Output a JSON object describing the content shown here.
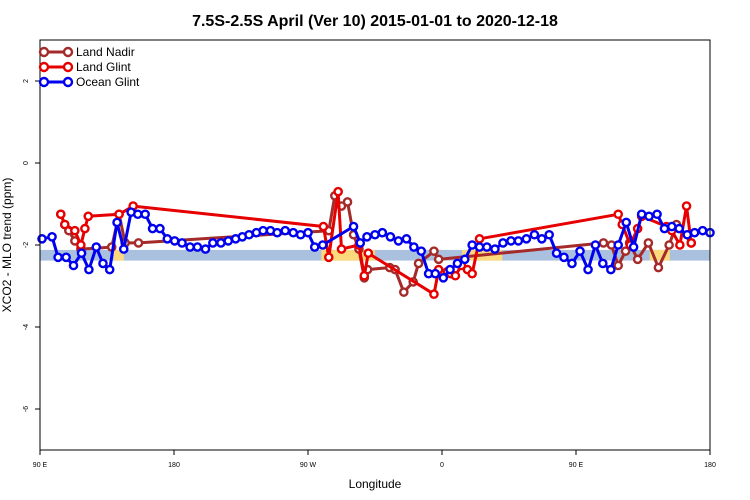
{
  "chart_data": {
    "type": "line",
    "title": "7.5S-2.5S April (Ver 10)   2015-01-01 to 2020-12-18",
    "xlabel": "Longitude",
    "ylabel": "XCO2 - MLO trend (ppm)",
    "xlim": [
      0,
      100
    ],
    "ylim": [
      -7,
      3
    ],
    "x_ticks": [
      {
        "pos": 0,
        "label": "90 E"
      },
      {
        "pos": 20,
        "label": "180"
      },
      {
        "pos": 40,
        "label": "90 W"
      },
      {
        "pos": 60,
        "label": "0"
      },
      {
        "pos": 80,
        "label": "90 E"
      },
      {
        "pos": 100,
        "label": "180"
      }
    ],
    "y_ticks": [
      2,
      0,
      -2,
      -4,
      -6
    ],
    "band": {
      "y_low": -2.38,
      "y_high": -2.12,
      "color": "#a9c0de"
    },
    "highlight_band": {
      "y_low": -2.38,
      "y_high": -2.12,
      "color": "#fcd97c",
      "segments": [
        [
          11,
          12.5
        ],
        [
          42,
          50
        ],
        [
          63,
          69
        ],
        [
          91,
          94
        ]
      ]
    },
    "legend": {
      "position": "top-left"
    },
    "series": [
      {
        "name": "Land Nadir",
        "color": "#a52a2a",
        "x": [
          3.1,
          3.7,
          4.3,
          5.2,
          6.1,
          10.7,
          11.8,
          12.7,
          14.7,
          43.1,
          44.0,
          45.0,
          45.9,
          46.8,
          47.6,
          48.4,
          48.9,
          52.2,
          53.0,
          54.3,
          55.7,
          56.5,
          58.8,
          59.5,
          84.1,
          85.3,
          86.3,
          87.4,
          88.0,
          89.2,
          90.8,
          92.3,
          93.9,
          95.0,
          97.2
        ],
        "y": [
          -1.25,
          -1.5,
          -1.65,
          -1.9,
          -2.1,
          -2.05,
          -1.25,
          -1.95,
          -1.95,
          -1.65,
          -0.8,
          -1.05,
          -0.95,
          -1.75,
          -2.1,
          -2.8,
          -2.6,
          -2.55,
          -2.6,
          -3.15,
          -2.9,
          -2.45,
          -2.15,
          -2.35,
          -1.95,
          -2.0,
          -2.5,
          -2.15,
          -1.95,
          -2.35,
          -1.95,
          -2.55,
          -2.0,
          -1.5,
          -1.95
        ]
      },
      {
        "name": "Land Glint",
        "color": "#e60000",
        "x": [
          3.1,
          3.7,
          5.2,
          6.1,
          6.7,
          7.2,
          11.8,
          13.9,
          42.3,
          43.1,
          44.5,
          45.0,
          47.6,
          48.4,
          49.0,
          58.8,
          59.5,
          60.8,
          61.3,
          62.0,
          62.9,
          63.8,
          64.5,
          65.6,
          86.3,
          86.9,
          88.1,
          89.2,
          89.8,
          93.5,
          94.3,
          95.5,
          96.5,
          97.2
        ],
        "y": [
          -1.25,
          -1.5,
          -1.65,
          -2.0,
          -1.6,
          -1.3,
          -1.25,
          -1.05,
          -1.55,
          -2.3,
          -0.7,
          -2.1,
          -2.0,
          -2.75,
          -2.2,
          -3.2,
          -2.6,
          -2.65,
          -2.7,
          -2.75,
          -2.5,
          -2.6,
          -2.7,
          -1.85,
          -1.25,
          -1.5,
          -2.0,
          -1.6,
          -1.3,
          -1.55,
          -1.65,
          -2.0,
          -1.05,
          -1.95
        ]
      },
      {
        "name": "Ocean Glint",
        "color": "#0000ee",
        "x": [
          0.3,
          1.8,
          2.7,
          3.9,
          5.0,
          6.2,
          7.3,
          8.4,
          9.4,
          10.4,
          11.5,
          12.5,
          13.6,
          14.6,
          15.7,
          16.8,
          17.9,
          19.0,
          20.1,
          21.2,
          22.4,
          23.5,
          24.7,
          25.8,
          27.0,
          28.1,
          29.2,
          30.2,
          31.2,
          32.3,
          33.3,
          34.4,
          35.4,
          36.6,
          37.8,
          38.9,
          40.0,
          41.0,
          42.2,
          46.8,
          47.8,
          48.8,
          50.0,
          51.1,
          52.3,
          53.5,
          54.7,
          55.8,
          56.9,
          58.0,
          59.0,
          60.2,
          61.2,
          62.3,
          63.4,
          64.5,
          65.6,
          66.7,
          67.9,
          69.1,
          70.3,
          71.4,
          72.6,
          73.8,
          74.9,
          76.0,
          77.1,
          78.2,
          79.4,
          80.6,
          81.8,
          82.9,
          84.0,
          85.2,
          86.3,
          87.5,
          88.6,
          89.8,
          90.9,
          92.1,
          93.2,
          94.3,
          95.4,
          96.6,
          97.7,
          98.9,
          100.0
        ],
        "y": [
          -1.85,
          -1.8,
          -2.3,
          -2.3,
          -2.5,
          -2.2,
          -2.6,
          -2.05,
          -2.45,
          -2.6,
          -1.45,
          -2.1,
          -1.2,
          -1.25,
          -1.25,
          -1.6,
          -1.6,
          -1.85,
          -1.9,
          -1.95,
          -2.05,
          -2.05,
          -2.1,
          -1.95,
          -1.95,
          -1.9,
          -1.85,
          -1.8,
          -1.75,
          -1.7,
          -1.65,
          -1.65,
          -1.7,
          -1.65,
          -1.7,
          -1.75,
          -1.7,
          -2.05,
          -2.0,
          -1.55,
          -1.95,
          -1.8,
          -1.75,
          -1.7,
          -1.8,
          -1.9,
          -1.85,
          -2.05,
          -2.15,
          -2.7,
          -2.7,
          -2.8,
          -2.6,
          -2.45,
          -2.35,
          -2.0,
          -2.05,
          -2.05,
          -2.1,
          -1.95,
          -1.9,
          -1.9,
          -1.85,
          -1.75,
          -1.85,
          -1.75,
          -2.2,
          -2.3,
          -2.45,
          -2.15,
          -2.6,
          -2.0,
          -2.45,
          -2.6,
          -2.0,
          -1.45,
          -2.05,
          -1.25,
          -1.3,
          -1.25,
          -1.6,
          -1.55,
          -1.6,
          -1.75,
          -1.7,
          -1.65,
          -1.7
        ]
      }
    ]
  }
}
